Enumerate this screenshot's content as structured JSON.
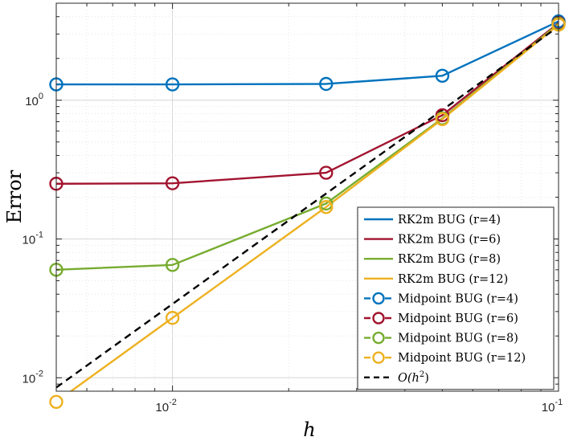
{
  "chart_data": {
    "type": "line",
    "xscale": "log",
    "yscale": "log",
    "xlim": [
      0.005,
      0.1
    ],
    "ylim": [
      0.008,
      5.0
    ],
    "xlabel": "h",
    "ylabel": "Error",
    "grid": true,
    "legend_position": "bottom-right",
    "x_ticks": [
      {
        "value": 0.01,
        "base": "10",
        "exp": "-2"
      },
      {
        "value": 0.1,
        "base": "10",
        "exp": "-1"
      }
    ],
    "y_ticks": [
      {
        "value": 0.01,
        "base": "10",
        "exp": "-2"
      },
      {
        "value": 0.1,
        "base": "10",
        "exp": "-1"
      },
      {
        "value": 1,
        "base": "10",
        "exp": "0"
      }
    ],
    "series": [
      {
        "name": "RK2m BUG (r=4)",
        "style": "solid",
        "color": "#0072BD",
        "x": [
          0.005,
          0.01,
          0.025,
          0.05,
          0.1
        ],
        "y": [
          1.3,
          1.3,
          1.31,
          1.5,
          3.7
        ]
      },
      {
        "name": "RK2m BUG (r=6)",
        "style": "solid",
        "color": "#A2142F",
        "x": [
          0.005,
          0.01,
          0.025,
          0.05,
          0.1
        ],
        "y": [
          0.25,
          0.252,
          0.3,
          0.78,
          3.6
        ]
      },
      {
        "name": "RK2m BUG (r=8)",
        "style": "solid",
        "color": "#77AC30",
        "x": [
          0.005,
          0.01,
          0.025,
          0.05,
          0.1
        ],
        "y": [
          0.06,
          0.065,
          0.18,
          0.74,
          3.55
        ]
      },
      {
        "name": "RK2m BUG (r=12)",
        "style": "solid",
        "color": "#EDB120",
        "x": [
          0.005,
          0.01,
          0.025,
          0.05,
          0.1
        ],
        "y": [
          0.0067,
          0.027,
          0.17,
          0.73,
          3.5
        ]
      },
      {
        "name": "Midpoint BUG (r=4)",
        "style": "dashed-marker",
        "color": "#0072BD",
        "x": [
          0.005,
          0.01,
          0.025,
          0.05,
          0.1
        ],
        "y": [
          1.3,
          1.3,
          1.31,
          1.5,
          3.7
        ]
      },
      {
        "name": "Midpoint BUG (r=6)",
        "style": "dashed-marker",
        "color": "#A2142F",
        "x": [
          0.005,
          0.01,
          0.025,
          0.05,
          0.1
        ],
        "y": [
          0.25,
          0.252,
          0.3,
          0.78,
          3.6
        ]
      },
      {
        "name": "Midpoint BUG (r=8)",
        "style": "dashed-marker",
        "color": "#77AC30",
        "x": [
          0.005,
          0.01,
          0.025,
          0.05,
          0.1
        ],
        "y": [
          0.06,
          0.065,
          0.18,
          0.74,
          3.55
        ]
      },
      {
        "name": "Midpoint BUG (r=12)",
        "style": "dashed-marker",
        "color": "#EDB120",
        "x": [
          0.005,
          0.01,
          0.025,
          0.05,
          0.1
        ],
        "y": [
          0.0067,
          0.027,
          0.17,
          0.73,
          3.5
        ]
      },
      {
        "name": "O(h2)",
        "label_main": "O(h",
        "label_sup": "2",
        "label_end": ")",
        "style": "dashed",
        "color": "#000000",
        "x": [
          0.005,
          0.1
        ],
        "y": [
          0.0085,
          3.4
        ]
      }
    ]
  }
}
